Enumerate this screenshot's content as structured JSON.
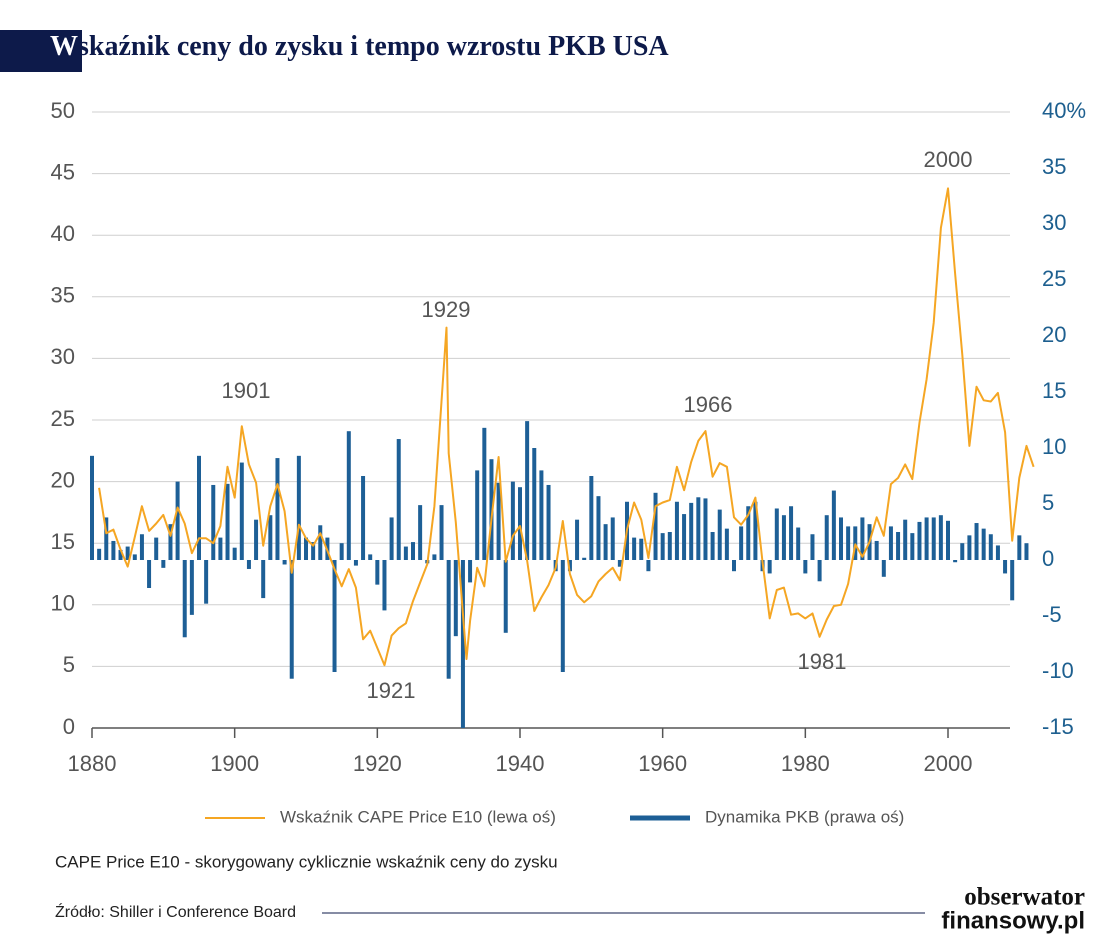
{
  "chart_data": {
    "type": "bar-line",
    "title": "Wskaźnik ceny do zysku i tempo wzrostu PKB USA",
    "xlim": [
      1880,
      2012
    ],
    "xticks": [
      1880,
      1900,
      1920,
      1940,
      1960,
      1980,
      2000
    ],
    "ylim": [
      0,
      50
    ],
    "yticks": [
      0,
      5,
      10,
      15,
      20,
      25,
      30,
      35,
      40,
      45,
      50
    ],
    "y2lim": [
      -15,
      40
    ],
    "y2ticks": [
      -15,
      -10,
      -5,
      0,
      5,
      10,
      15,
      20,
      25,
      30,
      35,
      {
        "value": 40,
        "label": "40%"
      }
    ],
    "grid": true,
    "series": [
      {
        "name": "Wskaźnik CAPE Price E10 (lewa oś)",
        "type": "line",
        "color": "#f5a623",
        "x": [
          1881,
          1882,
          1883,
          1884,
          1885,
          1886,
          1887,
          1888,
          1889,
          1890,
          1891,
          1892,
          1893,
          1894,
          1895,
          1896,
          1897,
          1898,
          1899,
          1900,
          1901,
          1902,
          1903,
          1904,
          1905,
          1906,
          1907,
          1908,
          1909,
          1910,
          1911,
          1912,
          1913,
          1914,
          1915,
          1916,
          1917,
          1918,
          1919,
          1920,
          1921,
          1922,
          1923,
          1924,
          1925,
          1926,
          1927,
          1928,
          1929,
          1929.7,
          1930,
          1931,
          1932,
          1932.5,
          1933,
          1934,
          1935,
          1936,
          1937,
          1938,
          1939,
          1940,
          1941,
          1942,
          1943,
          1944,
          1945,
          1946,
          1947,
          1948,
          1949,
          1950,
          1951,
          1952,
          1953,
          1954,
          1955,
          1956,
          1957,
          1958,
          1959,
          1960,
          1961,
          1962,
          1963,
          1964,
          1965,
          1966,
          1967,
          1968,
          1969,
          1970,
          1971,
          1972,
          1973,
          1974,
          1975,
          1976,
          1977,
          1978,
          1979,
          1980,
          1981,
          1982,
          1983,
          1984,
          1985,
          1986,
          1987,
          1988,
          1989,
          1990,
          1991,
          1992,
          1993,
          1994,
          1995,
          1996,
          1997,
          1998,
          1999,
          2000,
          2001,
          2002,
          2003,
          2004,
          2005,
          2006,
          2007,
          2008,
          2009,
          2010,
          2011,
          2012
        ],
        "values": [
          19.5,
          15.8,
          16.1,
          14.5,
          13.1,
          15.5,
          18.0,
          16.0,
          16.6,
          17.3,
          15.6,
          17.9,
          16.6,
          14.2,
          15.4,
          15.4,
          15.0,
          16.4,
          21.2,
          18.7,
          24.5,
          21.4,
          19.9,
          14.8,
          18.0,
          19.8,
          17.6,
          12.6,
          16.5,
          15.4,
          14.8,
          15.8,
          14.4,
          12.9,
          11.5,
          12.9,
          11.4,
          7.2,
          7.9,
          6.5,
          5.1,
          7.5,
          8.1,
          8.5,
          10.3,
          11.8,
          13.3,
          18.0,
          26.5,
          32.5,
          22.3,
          16.7,
          9.3,
          5.6,
          8.7,
          13.0,
          11.5,
          17.0,
          22.0,
          13.5,
          15.6,
          16.4,
          13.6,
          9.5,
          10.6,
          11.6,
          13.0,
          16.8,
          12.5,
          10.8,
          10.2,
          10.7,
          11.9,
          12.5,
          13.0,
          12.0,
          16.1,
          18.3,
          16.9,
          13.8,
          18.0,
          18.3,
          18.5,
          21.2,
          19.3,
          21.6,
          23.3,
          24.1,
          20.4,
          21.5,
          21.2,
          17.1,
          16.5,
          17.3,
          18.7,
          13.5,
          8.9,
          11.2,
          11.4,
          9.2,
          9.3,
          8.9,
          9.3,
          7.4,
          8.8,
          9.9,
          10.0,
          11.7,
          14.9,
          13.9,
          15.1,
          17.1,
          15.6,
          19.8,
          20.3,
          21.4,
          20.2,
          24.8,
          28.3,
          32.9,
          40.6,
          43.8,
          36.9,
          30.3,
          22.9,
          27.7,
          26.6,
          26.5,
          27.2,
          24.0,
          15.2,
          20.3,
          22.9,
          21.2
        ]
      },
      {
        "name": "Dynamika PKB (prawa oś)",
        "type": "bar",
        "axis": "y2",
        "color": "#1d5f96",
        "x": [
          1880,
          1881,
          1882,
          1883,
          1884,
          1885,
          1886,
          1887,
          1888,
          1889,
          1890,
          1891,
          1892,
          1893,
          1894,
          1895,
          1896,
          1897,
          1898,
          1899,
          1900,
          1901,
          1902,
          1903,
          1904,
          1905,
          1906,
          1907,
          1908,
          1909,
          1910,
          1911,
          1912,
          1913,
          1914,
          1915,
          1916,
          1917,
          1918,
          1919,
          1920,
          1921,
          1922,
          1923,
          1924,
          1925,
          1926,
          1927,
          1928,
          1929,
          1930,
          1931,
          1932,
          1933,
          1934,
          1935,
          1936,
          1937,
          1938,
          1939,
          1940,
          1941,
          1942,
          1943,
          1944,
          1945,
          1946,
          1947,
          1948,
          1949,
          1950,
          1951,
          1952,
          1953,
          1954,
          1955,
          1956,
          1957,
          1958,
          1959,
          1960,
          1961,
          1962,
          1963,
          1964,
          1965,
          1966,
          1967,
          1968,
          1969,
          1970,
          1971,
          1972,
          1973,
          1974,
          1975,
          1976,
          1977,
          1978,
          1979,
          1980,
          1981,
          1982,
          1983,
          1984,
          1985,
          1986,
          1987,
          1988,
          1989,
          1990,
          1991,
          1992,
          1993,
          1994,
          1995,
          1996,
          1997,
          1998,
          1999,
          2000,
          2001,
          2002,
          2003,
          2004,
          2005,
          2006,
          2007,
          2008,
          2009,
          2010,
          2011
        ],
        "values": [
          9.3,
          1.0,
          3.8,
          1.7,
          0.9,
          1.2,
          0.5,
          2.3,
          -2.5,
          2.0,
          -0.7,
          3.2,
          7.0,
          -6.9,
          -4.9,
          9.3,
          -3.9,
          6.7,
          2.0,
          6.8,
          1.1,
          8.7,
          -0.8,
          3.6,
          -3.4,
          4.0,
          9.1,
          -0.4,
          -10.6,
          9.3,
          2.0,
          1.6,
          3.1,
          2.0,
          -10.0,
          1.5,
          11.5,
          -0.5,
          7.5,
          0.5,
          -2.2,
          -4.5,
          3.8,
          10.8,
          1.2,
          1.6,
          4.9,
          -0.3,
          0.5,
          4.9,
          -10.6,
          -6.8,
          -15,
          -2.0,
          8.0,
          11.8,
          9.0,
          6.9,
          -6.5,
          7.0,
          6.5,
          12.4,
          10.0,
          8.0,
          6.7,
          -1.0,
          -10.0,
          -1.0,
          3.6,
          0.2,
          7.5,
          5.7,
          3.2,
          3.8,
          -0.6,
          5.2,
          2.0,
          1.9,
          -1.0,
          6.0,
          2.4,
          2.5,
          5.2,
          4.1,
          5.1,
          5.6,
          5.5,
          2.5,
          4.5,
          2.8,
          -1.0,
          3.0,
          4.8,
          5.2,
          -1.0,
          -1.2,
          4.6,
          4.0,
          4.8,
          2.9,
          -1.2,
          2.3,
          -1.9,
          4.0,
          6.2,
          3.8,
          3.0,
          3.0,
          3.8,
          3.2,
          1.7,
          -1.5,
          3.0,
          2.5,
          3.6,
          2.4,
          3.4,
          3.8,
          3.8,
          4.0,
          3.5,
          -0.2,
          1.5,
          2.2,
          3.3,
          2.8,
          2.3,
          1.3,
          -1.2,
          -3.6,
          2.2,
          1.5
        ]
      }
    ],
    "annotations": [
      "1901",
      "1929",
      "1966",
      "2000",
      "1921",
      "1981"
    ],
    "note": "CAPE Price E10 - skorygowany cyklicznie wskaźnik ceny do zysku",
    "source": "Źródło: Shiller i Conference Board",
    "logo": [
      "obserwator",
      "finansowy.pl"
    ]
  }
}
